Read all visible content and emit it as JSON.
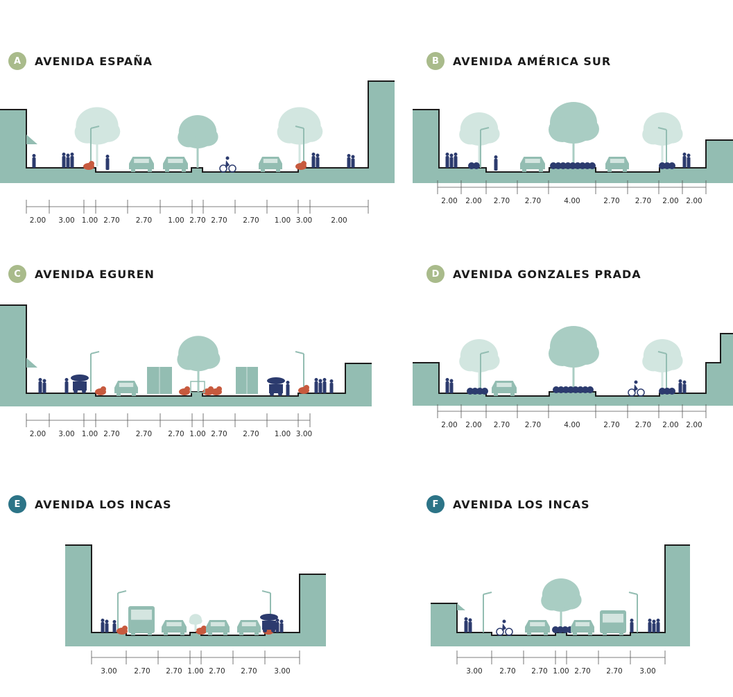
{
  "colors": {
    "terrain": "#93bdb2",
    "tree": "#a9cdc3",
    "tree_faint": "#d2e6e0",
    "people": "#2c3b6e",
    "planter": "#c75a3e",
    "line": "#1c1c1c",
    "badge_green": "#a9bb8b",
    "badge_teal": "#2c7487"
  },
  "sections": [
    {
      "id": "a",
      "letter": "A",
      "title": "AVENIDA ESPAÑA",
      "badge_color": "#a9bb8b",
      "widths": [
        "2.00",
        "3.00",
        "1.00",
        "2.70",
        "2.70",
        "1.00",
        "2.70",
        "2.70",
        "2.70",
        "1.00",
        "3.00",
        "2.00"
      ]
    },
    {
      "id": "b",
      "letter": "B",
      "title": "AVENIDA AMÉRICA SUR",
      "badge_color": "#a9bb8b",
      "widths": [
        "2.00",
        "2.00",
        "2.70",
        "2.70",
        "4.00",
        "2.70",
        "2.70",
        "2.00",
        "2.00"
      ]
    },
    {
      "id": "c",
      "letter": "C",
      "title": "AVENIDA EGUREN",
      "badge_color": "#a9bb8b",
      "widths": [
        "2.00",
        "3.00",
        "1.00",
        "2.70",
        "2.70",
        "2.70",
        "1.00",
        "2.70",
        "2.70",
        "1.00",
        "3.00"
      ]
    },
    {
      "id": "d",
      "letter": "D",
      "title": "AVENIDA GONZALES PRADA",
      "badge_color": "#a9bb8b",
      "widths": [
        "2.00",
        "2.00",
        "2.70",
        "2.70",
        "4.00",
        "2.70",
        "2.70",
        "2.00",
        "2.00"
      ]
    },
    {
      "id": "e",
      "letter": "E",
      "title": "AVENIDA LOS INCAS",
      "badge_color": "#2c7487",
      "widths": [
        "3.00",
        "2.70",
        "2.70",
        "1.00",
        "2.70",
        "2.70",
        "3.00"
      ]
    },
    {
      "id": "f",
      "letter": "F",
      "title": "AVENIDA LOS INCAS",
      "badge_color": "#2c7487",
      "widths": [
        "3.00",
        "2.70",
        "2.70",
        "1.00",
        "2.70",
        "2.70",
        "3.00"
      ]
    }
  ]
}
